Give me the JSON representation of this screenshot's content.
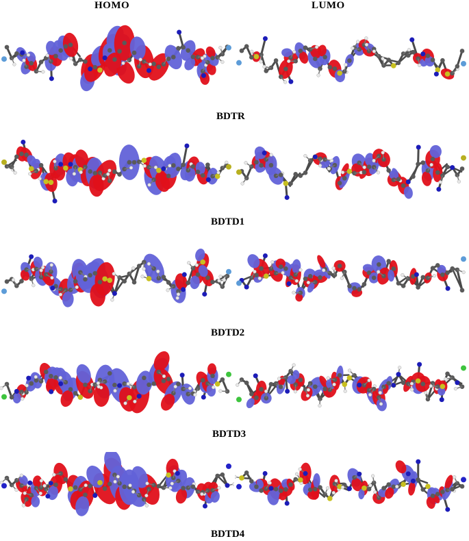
{
  "headers": {
    "homo": "HOMO",
    "lumo": "LUMO"
  },
  "molecules": [
    {
      "id": "bdtr",
      "label": "BDTR",
      "terminal_atom_color": "#5d9cd8"
    },
    {
      "id": "bdtd1",
      "label": "BDTD1",
      "terminal_atom_color": "#b8b020"
    },
    {
      "id": "bdtd2",
      "label": "BDTD2",
      "terminal_atom_color": "#5d9cd8"
    },
    {
      "id": "bdtd3",
      "label": "BDTD3",
      "terminal_atom_color": "#3ec43e"
    },
    {
      "id": "bdtd4",
      "label": "BDTD4",
      "terminal_atom_color": "#2222c8"
    }
  ],
  "colors": {
    "positive_lobe": "#e0101a",
    "negative_lobe": "#6262d8",
    "carbon": "#5a5a5a",
    "hydrogen": "#e8e8e8",
    "nitrogen": "#1c1cb8",
    "sulfur": "#c8c020",
    "oxygen": "#d02020"
  }
}
